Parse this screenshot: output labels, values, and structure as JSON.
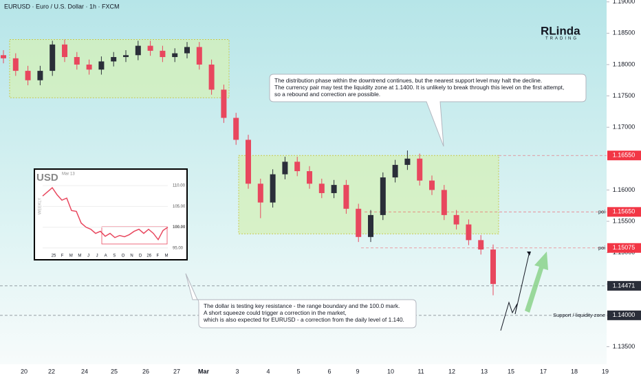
{
  "chart_data": {
    "type": "candlestick",
    "title": "EURUSD · Euro / U.S. Dollar · 1h · FXCM",
    "logo": {
      "main": "RLinda",
      "sub": "TRADING"
    },
    "up_color": "#2a2e39",
    "down_color": "#e8475e",
    "open": [
      1.1815,
      1.181,
      1.179,
      1.1775,
      1.179,
      1.1832,
      1.1812,
      1.18,
      1.1792,
      1.1805,
      1.1812,
      1.1815,
      1.183,
      1.1822,
      1.1812,
      1.1818,
      1.1828,
      1.18,
      1.176,
      1.1715,
      1.168,
      1.161,
      1.158,
      1.1625,
      1.1645,
      1.163,
      1.161,
      1.1595,
      1.1608,
      1.157,
      1.1525,
      1.156,
      1.162,
      1.164,
      1.165,
      1.1615,
      1.16,
      1.156,
      1.1545,
      1.152,
      1.1505
    ],
    "high": [
      1.1823,
      1.1818,
      1.1798,
      1.1798,
      1.1838,
      1.184,
      1.182,
      1.1808,
      1.1813,
      1.182,
      1.1823,
      1.1838,
      1.1838,
      1.183,
      1.1826,
      1.1836,
      1.1836,
      1.1808,
      1.1768,
      1.1723,
      1.1688,
      1.1618,
      1.1633,
      1.1653,
      1.1653,
      1.1638,
      1.1618,
      1.1616,
      1.1616,
      1.1578,
      1.1568,
      1.1628,
      1.1648,
      1.1663,
      1.1658,
      1.1623,
      1.1608,
      1.1568,
      1.1553,
      1.1528,
      1.1513
    ],
    "low": [
      1.1802,
      1.1782,
      1.1767,
      1.1767,
      1.1782,
      1.1804,
      1.1792,
      1.1784,
      1.1784,
      1.1797,
      1.1804,
      1.1807,
      1.1814,
      1.1804,
      1.1804,
      1.181,
      1.1792,
      1.1752,
      1.1707,
      1.1672,
      1.1602,
      1.1555,
      1.1572,
      1.1617,
      1.1622,
      1.1602,
      1.1587,
      1.1587,
      1.1562,
      1.1517,
      1.1517,
      1.1552,
      1.1612,
      1.1632,
      1.1607,
      1.1592,
      1.1552,
      1.1537,
      1.1512,
      1.1497,
      1.1432
    ],
    "close": [
      1.181,
      1.179,
      1.1775,
      1.179,
      1.1832,
      1.1812,
      1.18,
      1.1792,
      1.1805,
      1.1812,
      1.1815,
      1.183,
      1.1822,
      1.1812,
      1.1818,
      1.1828,
      1.18,
      1.176,
      1.1715,
      1.168,
      1.161,
      1.158,
      1.1625,
      1.1645,
      1.163,
      1.161,
      1.1595,
      1.1608,
      1.157,
      1.1525,
      1.156,
      1.162,
      1.164,
      1.165,
      1.1615,
      1.16,
      1.156,
      1.1545,
      1.152,
      1.1505,
      1.145
    ],
    "ylim": [
      1.1322,
      1.1903
    ],
    "yticks": [
      {
        "value": 1.135,
        "label": "1.13500"
      },
      {
        "value": 1.14,
        "label": "1.14000"
      },
      {
        "value": 1.145,
        "label": "1.14500"
      },
      {
        "value": 1.15,
        "label": "1.15000"
      },
      {
        "value": 1.155,
        "label": "1.15500"
      },
      {
        "value": 1.16,
        "label": "1.16000"
      },
      {
        "value": 1.17,
        "label": "1.17000"
      },
      {
        "value": 1.175,
        "label": "1.17500"
      },
      {
        "value": 1.18,
        "label": "1.18000"
      },
      {
        "value": 1.185,
        "label": "1.18500"
      },
      {
        "value": 1.19,
        "label": "1.19000"
      }
    ],
    "date_labels": [
      "20",
      "22",
      "24",
      "25",
      "26",
      "27",
      "Mar",
      "3",
      "4",
      "5",
      "6",
      "9",
      "10",
      "11",
      "12",
      "13",
      "15",
      "17",
      "18",
      "19"
    ],
    "zones": [
      {
        "ylim": [
          1.1747,
          1.184
        ]
      },
      {
        "ylim": [
          1.153,
          1.1655
        ]
      }
    ],
    "price_lines": [
      {
        "value": 1.1655,
        "label": "1.16550",
        "color": "#f23645"
      },
      {
        "value": 1.1565,
        "label": "1.15650",
        "color": "#f23645",
        "tag": "poi"
      },
      {
        "value": 1.15075,
        "label": "1.15075",
        "color": "#f23645",
        "tag": "poi"
      },
      {
        "value": 1.14471,
        "label": "1.14471",
        "color": "#2a2e39"
      },
      {
        "value": 1.14,
        "label": "1.14000",
        "color": "#2a2e39",
        "tag": "Support / liquidity zone"
      }
    ],
    "annotations": [
      {
        "lines": [
          "The distribution phase within the downtrend continues, but the nearest support level may halt the decline.",
          "The currency pair may test the liquidity zone at 1.1400. It is unlikely to break through this level on the first attempt,",
          "so a rebound and correction are possible."
        ]
      },
      {
        "lines": [
          "The dollar is testing key resistance - the range boundary and the 100.0 mark.",
          "A short squeeze could trigger a correction in the market,",
          "which is also expected for EURUSD - a correction from the daily level of 1.140."
        ]
      }
    ],
    "inset": {
      "type": "line",
      "title": "USD",
      "date": "Mar 13",
      "period": "WEEKLY",
      "color": "#e8475e",
      "values": [
        107.5,
        108.5,
        109.5,
        107.8,
        106.5,
        107,
        104,
        103.8,
        101,
        100,
        99.5,
        98.5,
        99,
        97.8,
        98.5,
        97.5,
        98,
        97.7,
        98.2,
        99,
        99.5,
        98.5,
        99.5,
        98.5,
        97,
        99.2,
        100
      ],
      "ylim": [
        93.8,
        112.5
      ],
      "yticks": [
        {
          "value": 95,
          "label": "95.00"
        },
        {
          "value": 100,
          "label": "100.00"
        },
        {
          "value": 105,
          "label": "105.00"
        },
        {
          "value": 110,
          "label": "110.00"
        }
      ],
      "x_labels": [
        "25",
        "F",
        "M",
        "M",
        "J",
        "J",
        "A",
        "S",
        "O",
        "N",
        "D",
        "26",
        "F",
        "M"
      ]
    }
  }
}
